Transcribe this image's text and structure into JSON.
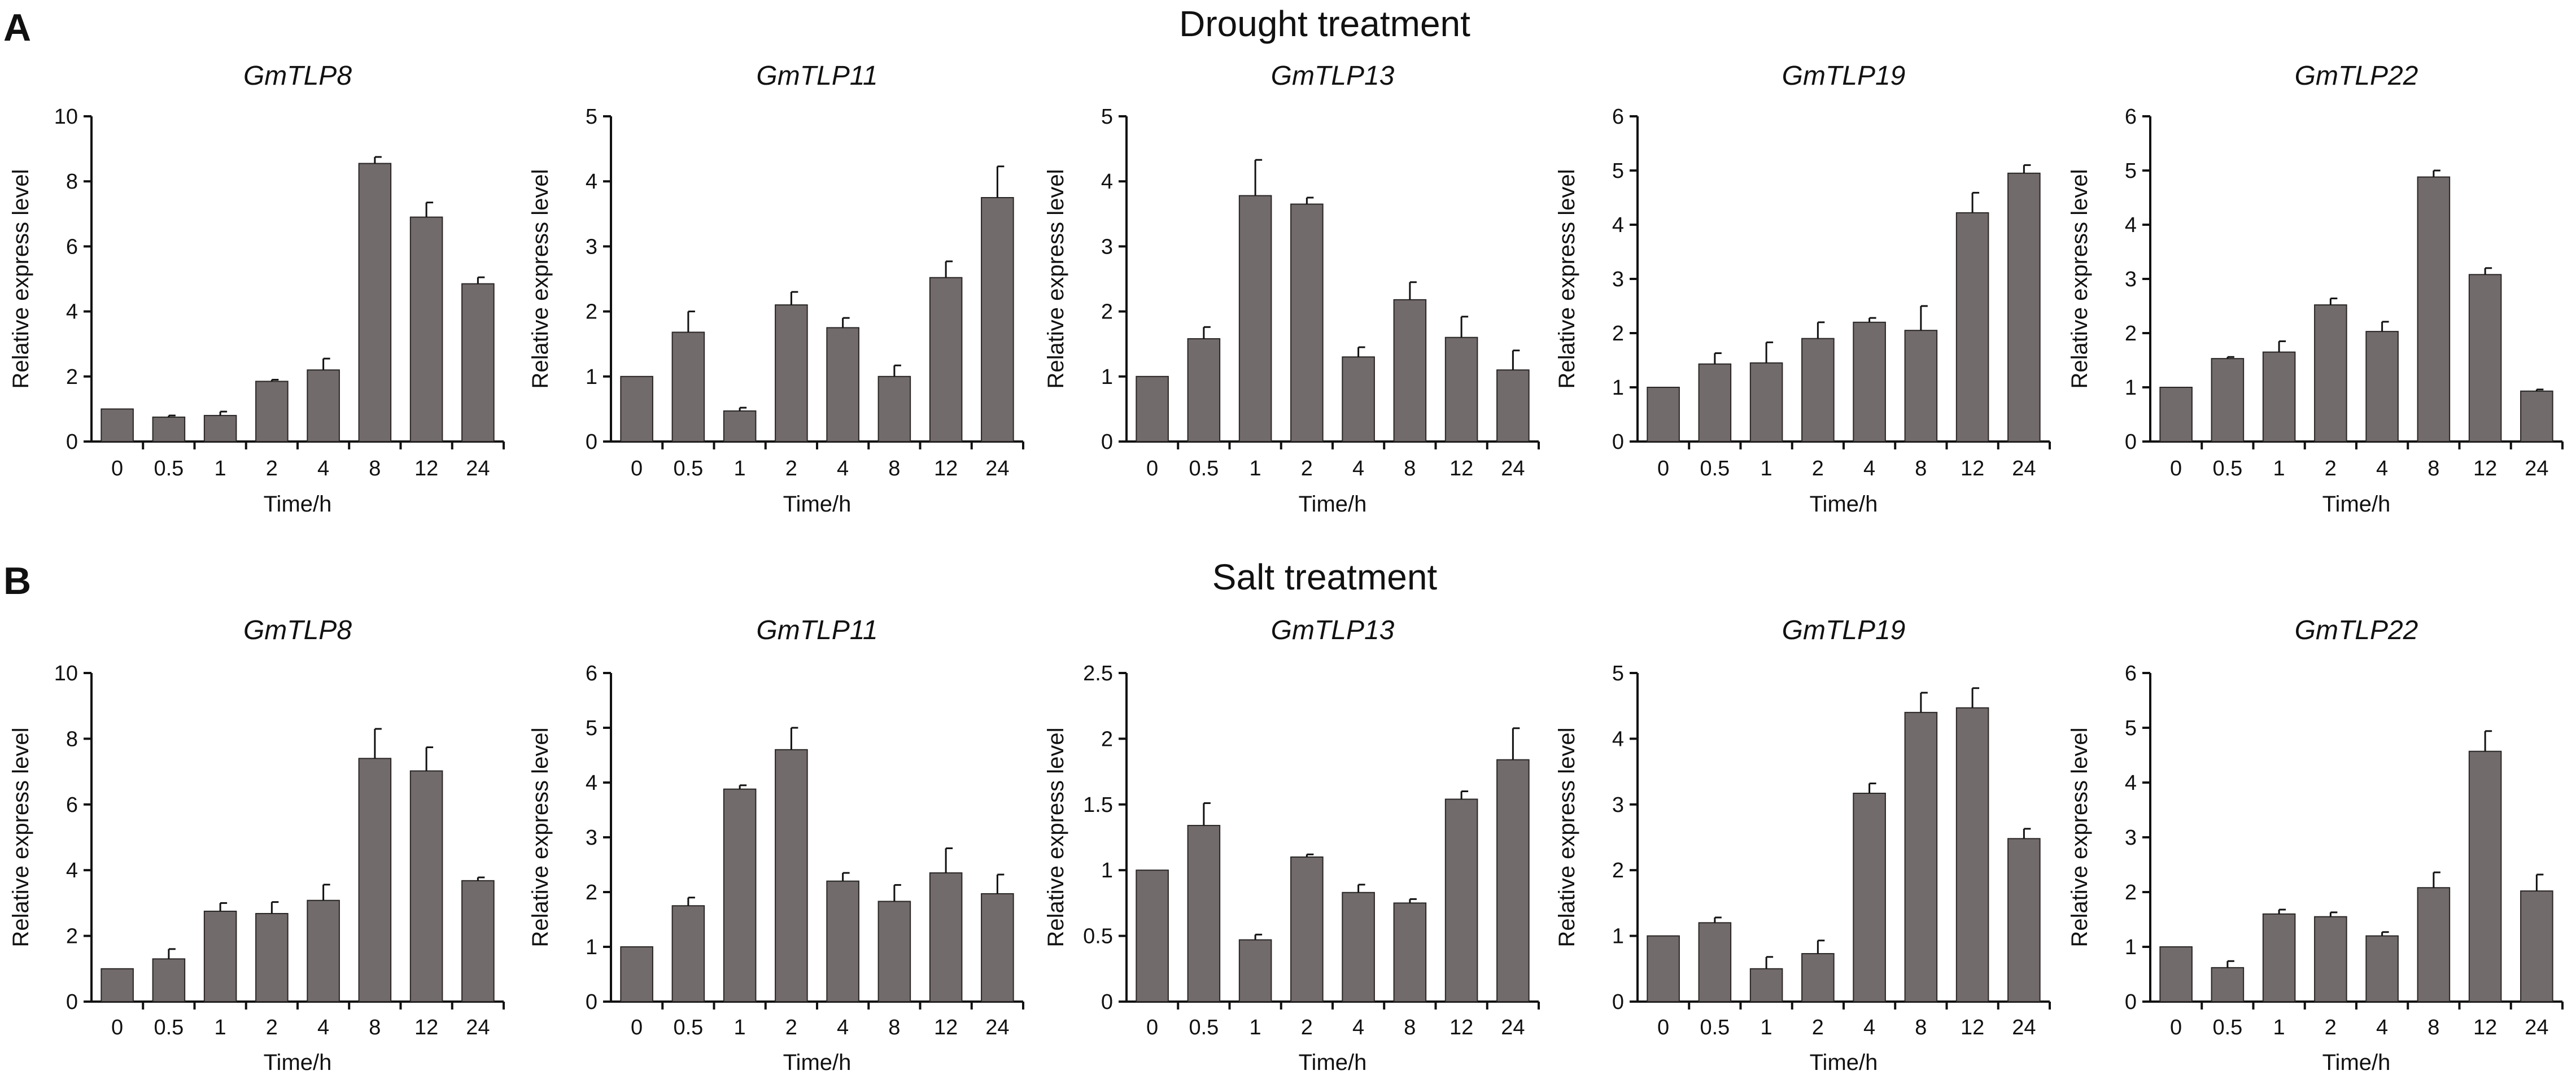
{
  "colors": {
    "bar": "#726b6b",
    "axis": "#111111",
    "text": "#111111"
  },
  "panels": [
    {
      "letter": "A",
      "title": "Drought treatment"
    },
    {
      "letter": "B",
      "title": "Salt treatment"
    }
  ],
  "chart_data": [
    {
      "type": "bar",
      "title": "GmTLP8",
      "panel": "A",
      "xlabel": "Time/h",
      "ylabel": "Relative express level",
      "categories": [
        "0",
        "0.5",
        "1",
        "2",
        "4",
        "8",
        "12",
        "24"
      ],
      "values": [
        1.0,
        0.75,
        0.8,
        1.85,
        2.2,
        8.55,
        6.9,
        4.85
      ],
      "errors": [
        0.0,
        0.05,
        0.12,
        0.05,
        0.35,
        0.2,
        0.45,
        0.2
      ],
      "ylim": [
        0,
        10
      ],
      "yticks": [
        0,
        2,
        4,
        6,
        8,
        10
      ]
    },
    {
      "type": "bar",
      "title": "GmTLP11",
      "panel": "A",
      "xlabel": "Time/h",
      "ylabel": "Relative express level",
      "categories": [
        "0",
        "0.5",
        "1",
        "2",
        "4",
        "8",
        "12",
        "24"
      ],
      "values": [
        1.0,
        1.68,
        0.47,
        2.1,
        1.75,
        1.0,
        2.52,
        3.75
      ],
      "errors": [
        0.0,
        0.32,
        0.05,
        0.2,
        0.15,
        0.17,
        0.25,
        0.48
      ],
      "ylim": [
        0,
        5
      ],
      "yticks": [
        0,
        1,
        2,
        3,
        4,
        5
      ]
    },
    {
      "type": "bar",
      "title": "GmTLP13",
      "panel": "A",
      "xlabel": "Time/h",
      "ylabel": "Relative express level",
      "categories": [
        "0",
        "0.5",
        "1",
        "2",
        "4",
        "8",
        "12",
        "24"
      ],
      "values": [
        1.0,
        1.58,
        3.78,
        3.65,
        1.3,
        2.18,
        1.6,
        1.1
      ],
      "errors": [
        0.0,
        0.18,
        0.55,
        0.1,
        0.15,
        0.27,
        0.32,
        0.3
      ],
      "ylim": [
        0,
        5
      ],
      "yticks": [
        0,
        1,
        2,
        3,
        4,
        5
      ]
    },
    {
      "type": "bar",
      "title": "GmTLP19",
      "panel": "A",
      "xlabel": "Time/h",
      "ylabel": "Relative express level",
      "categories": [
        "0",
        "0.5",
        "1",
        "2",
        "4",
        "8",
        "12",
        "24"
      ],
      "values": [
        1.0,
        1.43,
        1.45,
        1.9,
        2.2,
        2.05,
        4.22,
        4.95
      ],
      "errors": [
        0.0,
        0.2,
        0.38,
        0.3,
        0.08,
        0.45,
        0.37,
        0.15
      ],
      "ylim": [
        0,
        6
      ],
      "yticks": [
        0,
        1,
        2,
        3,
        4,
        5,
        6
      ]
    },
    {
      "type": "bar",
      "title": "GmTLP22",
      "panel": "A",
      "xlabel": "Time/h",
      "ylabel": "Relative express level",
      "categories": [
        "0",
        "0.5",
        "1",
        "2",
        "4",
        "8",
        "12",
        "24"
      ],
      "values": [
        1.0,
        1.53,
        1.65,
        2.52,
        2.03,
        4.88,
        3.08,
        0.93
      ],
      "errors": [
        0.0,
        0.03,
        0.2,
        0.12,
        0.18,
        0.12,
        0.12,
        0.03
      ],
      "ylim": [
        0,
        6
      ],
      "yticks": [
        0,
        1,
        2,
        3,
        4,
        5,
        6
      ]
    },
    {
      "type": "bar",
      "title": "GmTLP8",
      "panel": "B",
      "xlabel": "Time/h",
      "ylabel": "Relative express level",
      "categories": [
        "0",
        "0.5",
        "1",
        "2",
        "4",
        "8",
        "12",
        "24"
      ],
      "values": [
        1.0,
        1.3,
        2.75,
        2.68,
        3.08,
        7.4,
        7.02,
        3.68
      ],
      "errors": [
        0.0,
        0.3,
        0.25,
        0.35,
        0.48,
        0.9,
        0.72,
        0.1
      ],
      "ylim": [
        0,
        10
      ],
      "yticks": [
        0,
        2,
        4,
        6,
        8,
        10
      ]
    },
    {
      "type": "bar",
      "title": "GmTLP11",
      "panel": "B",
      "xlabel": "Time/h",
      "ylabel": "Relative express level",
      "categories": [
        "0",
        "0.5",
        "1",
        "2",
        "4",
        "8",
        "12",
        "24"
      ],
      "values": [
        1.0,
        1.75,
        3.88,
        4.6,
        2.2,
        1.83,
        2.35,
        1.97
      ],
      "errors": [
        0.0,
        0.15,
        0.07,
        0.4,
        0.15,
        0.3,
        0.45,
        0.35
      ],
      "ylim": [
        0,
        6
      ],
      "yticks": [
        0,
        1,
        2,
        3,
        4,
        5,
        6
      ]
    },
    {
      "type": "bar",
      "title": "GmTLP13",
      "panel": "B",
      "xlabel": "Time/h",
      "ylabel": "Relative express level",
      "categories": [
        "0",
        "0.5",
        "1",
        "2",
        "4",
        "8",
        "12",
        "24"
      ],
      "values": [
        1.0,
        1.34,
        0.47,
        1.1,
        0.83,
        0.75,
        1.54,
        1.84
      ],
      "errors": [
        0.0,
        0.17,
        0.04,
        0.02,
        0.06,
        0.03,
        0.06,
        0.24
      ],
      "ylim": [
        0,
        2.5
      ],
      "yticks": [
        0,
        0.5,
        1,
        1.5,
        2,
        2.5
      ]
    },
    {
      "type": "bar",
      "title": "GmTLP19",
      "panel": "B",
      "xlabel": "Time/h",
      "ylabel": "Relative express level",
      "categories": [
        "0",
        "0.5",
        "1",
        "2",
        "4",
        "8",
        "12",
        "24"
      ],
      "values": [
        1.0,
        1.2,
        0.5,
        0.73,
        3.17,
        4.4,
        4.47,
        2.48
      ],
      "errors": [
        0.0,
        0.08,
        0.18,
        0.2,
        0.15,
        0.3,
        0.3,
        0.15
      ],
      "ylim": [
        0,
        5
      ],
      "yticks": [
        0,
        1,
        2,
        3,
        4,
        5
      ]
    },
    {
      "type": "bar",
      "title": "GmTLP22",
      "panel": "B",
      "xlabel": "Time/h",
      "ylabel": "Relative express level",
      "categories": [
        "0",
        "0.5",
        "1",
        "2",
        "4",
        "8",
        "12",
        "24"
      ],
      "values": [
        1.0,
        0.62,
        1.6,
        1.55,
        1.2,
        2.08,
        4.57,
        2.02
      ],
      "errors": [
        0.0,
        0.12,
        0.08,
        0.08,
        0.07,
        0.28,
        0.37,
        0.3
      ],
      "ylim": [
        0,
        6
      ],
      "yticks": [
        0,
        1,
        2,
        3,
        4,
        5,
        6
      ]
    }
  ]
}
